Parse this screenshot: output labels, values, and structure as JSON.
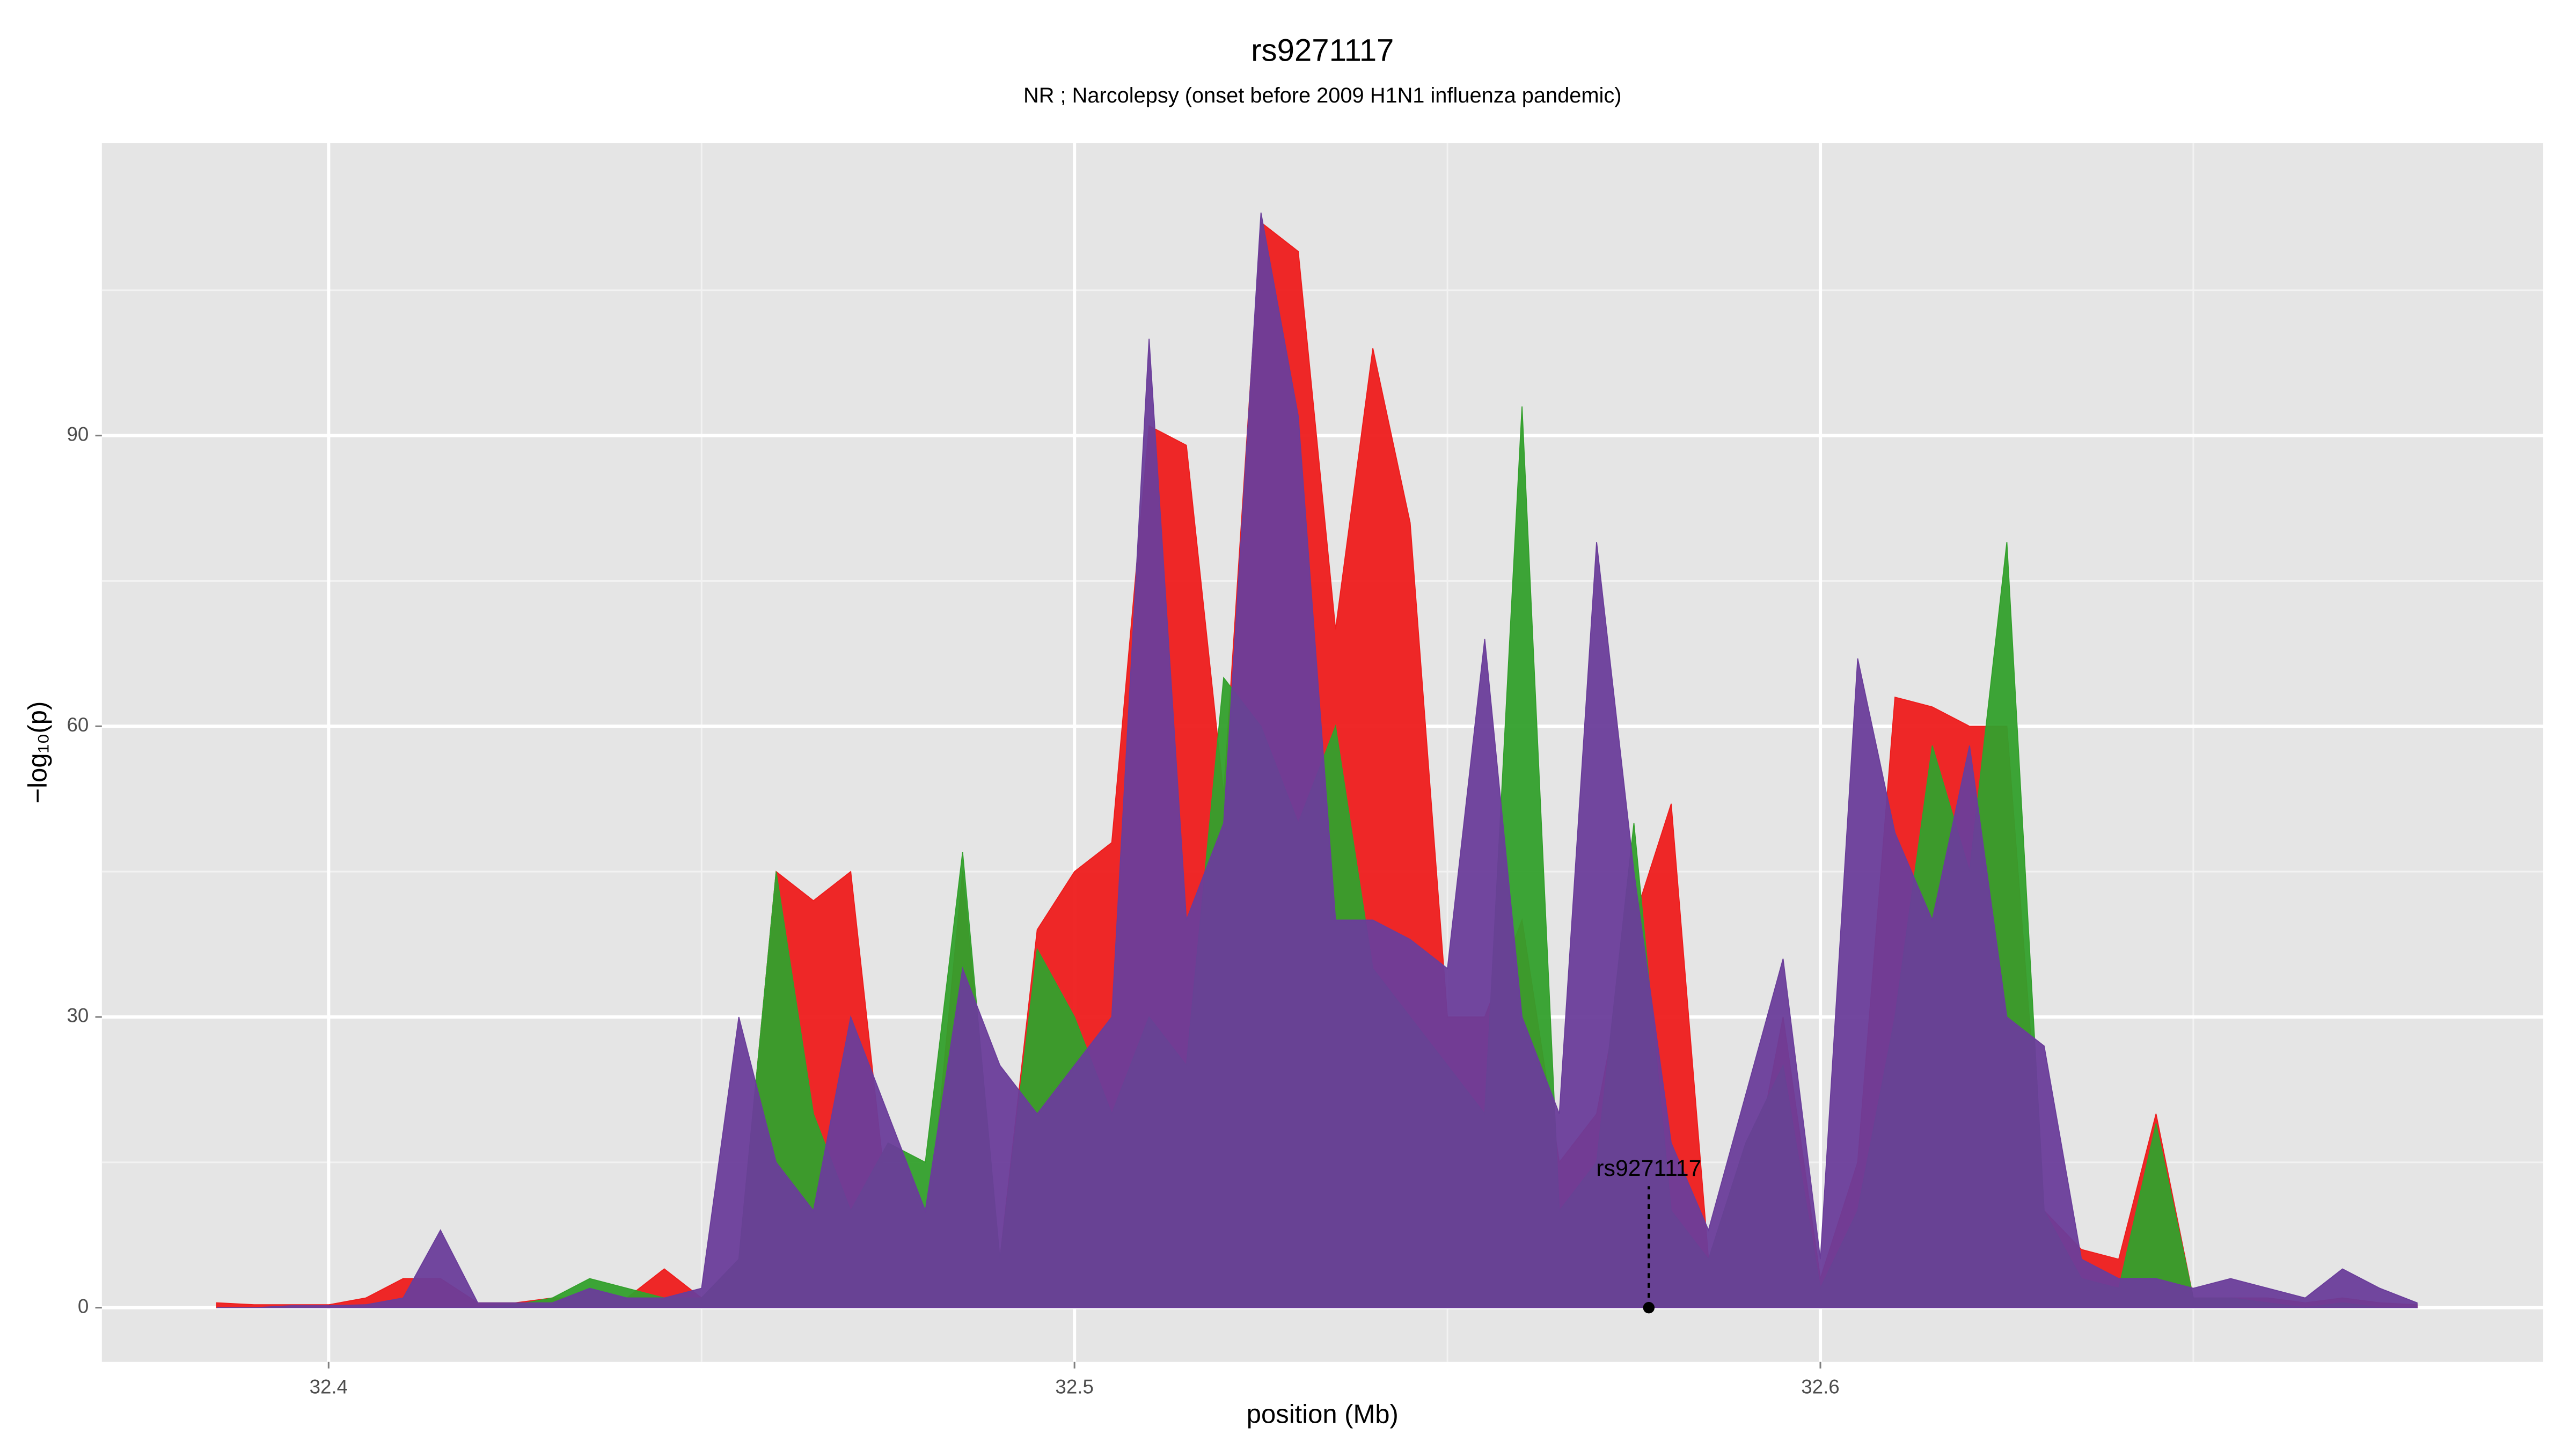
{
  "chart_data": {
    "type": "area",
    "title": "rs9271117",
    "subtitle": "NR ; Narcolepsy (onset before 2009 H1N1 influenza pandemic)",
    "x_label": "position (Mb)",
    "y_label": "−log₁₀(p)",
    "x": [
      32.385,
      32.39,
      32.395,
      32.4,
      32.405,
      32.41,
      32.415,
      32.42,
      32.425,
      32.43,
      32.435,
      32.44,
      32.445,
      32.45,
      32.455,
      32.46,
      32.465,
      32.47,
      32.475,
      32.48,
      32.485,
      32.49,
      32.495,
      32.5,
      32.505,
      32.51,
      32.515,
      32.52,
      32.525,
      32.53,
      32.535,
      32.54,
      32.545,
      32.55,
      32.555,
      32.56,
      32.565,
      32.57,
      32.575,
      32.58,
      32.585,
      32.59,
      32.595,
      32.6,
      32.605,
      32.61,
      32.615,
      32.62,
      32.625,
      32.63,
      32.635,
      32.64,
      32.645,
      32.65,
      32.655,
      32.66,
      32.665,
      32.67,
      32.675,
      32.68
    ],
    "series": [
      {
        "color": "#ee1c1c",
        "values": [
          0.5,
          0.3,
          0.3,
          0.3,
          1,
          3,
          3,
          0.5,
          0.5,
          1,
          1,
          1,
          4,
          1,
          5,
          45,
          42,
          45,
          10,
          5,
          45,
          5,
          39,
          45,
          48,
          91,
          89,
          53,
          112,
          109,
          70,
          99,
          81,
          30,
          30,
          40,
          15,
          20,
          40,
          52,
          5,
          10,
          30,
          3,
          15,
          63,
          62,
          60,
          60,
          10,
          6,
          5,
          20,
          1,
          1,
          1,
          0.5,
          1,
          0.5,
          0.3
        ]
      },
      {
        "color": "#33a02c",
        "values": [
          0,
          0,
          0,
          0,
          0,
          0,
          0,
          0,
          0.3,
          1,
          3,
          2,
          1,
          1,
          5,
          45,
          20,
          10,
          17,
          15,
          47,
          5,
          37,
          30,
          20,
          30,
          25,
          65,
          60,
          50,
          60,
          35,
          30,
          25,
          20,
          93,
          10,
          15,
          50,
          10,
          5,
          17,
          25,
          2,
          10,
          30,
          58,
          45,
          79,
          10,
          3,
          2,
          19,
          1,
          1,
          0.5,
          0,
          0.5,
          0,
          0
        ]
      },
      {
        "color": "#6a3d9a",
        "values": [
          0,
          0,
          0.2,
          0.2,
          0.3,
          1,
          8,
          0.5,
          0.5,
          0.5,
          2,
          1,
          1,
          2,
          30,
          15,
          10,
          30,
          20,
          10,
          35,
          25,
          20,
          25,
          30,
          100,
          40,
          50,
          113,
          92,
          40,
          40,
          38,
          35,
          69,
          30,
          20,
          79,
          45,
          17,
          8,
          22,
          36,
          5,
          67,
          49,
          40,
          58,
          30,
          27,
          5,
          3,
          3,
          2,
          3,
          2,
          1,
          4,
          2,
          0.5
        ]
      }
    ],
    "xlim": [
      32.3696,
      32.6969
    ],
    "ylim": [
      -5.6,
      120.2
    ],
    "xticks": [
      32.4,
      32.5,
      32.6
    ],
    "yticks": [
      0,
      30,
      60,
      90
    ],
    "grid": true,
    "annotation": {
      "label": "rs9271117",
      "x": 32.577,
      "y": 0
    }
  }
}
